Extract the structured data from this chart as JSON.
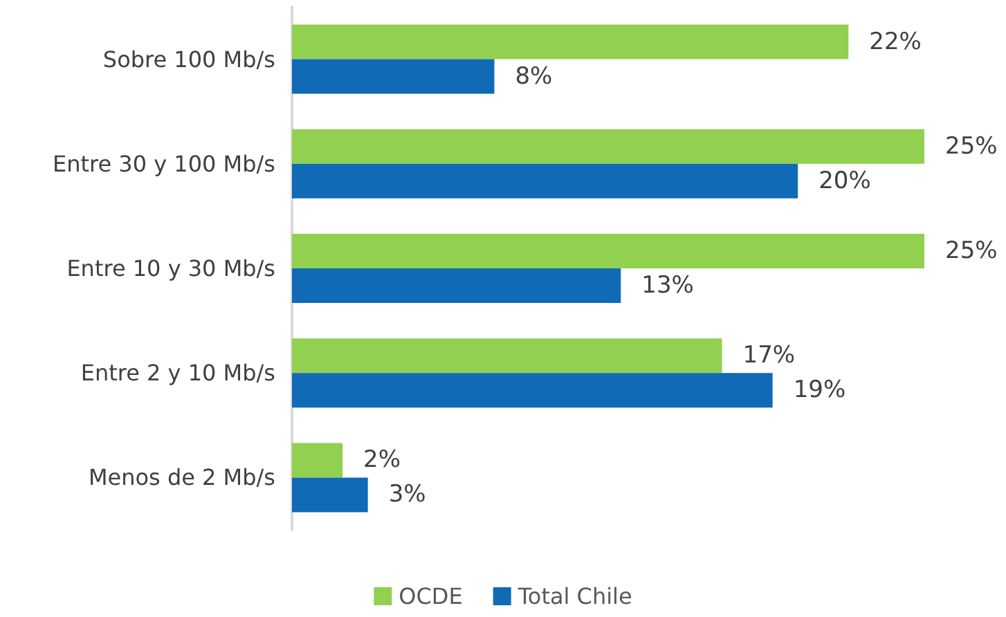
{
  "chart_data": {
    "type": "bar",
    "orientation": "horizontal",
    "categories": [
      "Sobre 100 Mb/s",
      "Entre 30 y 100 Mb/s",
      "Entre 10 y 30 Mb/s",
      "Entre 2 y 10 Mb/s",
      "Menos de 2 Mb/s"
    ],
    "series": [
      {
        "name": "OCDE",
        "color": "#92d050",
        "values": [
          22,
          25,
          25,
          17,
          2
        ],
        "value_labels": [
          "22%",
          "25%",
          "25%",
          "17%",
          "2%"
        ]
      },
      {
        "name": "Total Chile",
        "color": "#106ab5",
        "values": [
          8,
          20,
          13,
          19,
          3
        ],
        "value_labels": [
          "8%",
          "20%",
          "13%",
          "19%",
          "3%"
        ]
      }
    ],
    "legend": "bottom",
    "tick_labels": "y"
  }
}
